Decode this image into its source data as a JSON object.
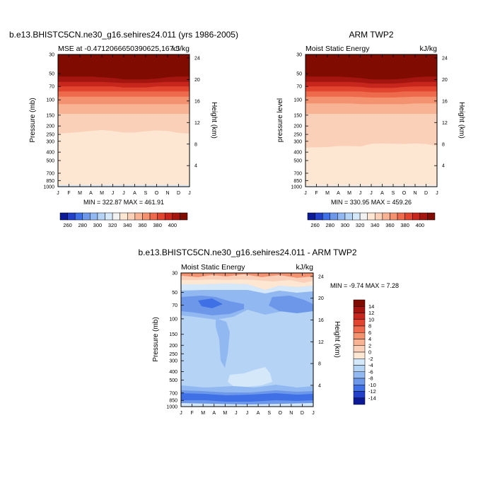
{
  "chart_data": [
    {
      "type": "heatmap",
      "title": "b.e13.BHISTC5CN.ne30_g16.sehires24.011 (yrs 1986-2005)",
      "subtitle_left": "MSE at -0.4712066650390625,167.5",
      "subtitle_right": "kJ/kg",
      "xlabel": "",
      "ylabel": "Pressure (mb)",
      "ylabel_right": "Height (km)",
      "months": [
        "J",
        "F",
        "M",
        "A",
        "M",
        "J",
        "J",
        "A",
        "S",
        "O",
        "N",
        "D",
        "J"
      ],
      "pressure_ticks": [
        "30",
        "50",
        "70",
        "100",
        "150",
        "200",
        "250",
        "300",
        "400",
        "500",
        "700",
        "850",
        "1000"
      ],
      "height_ticks": [
        "24",
        "20",
        "16",
        "12",
        "8",
        "4"
      ],
      "minmax": "MIN = 322.87 MAX = 461.91",
      "colorbar_labels": [
        "260",
        "280",
        "300",
        "320",
        "340",
        "360",
        "380",
        "400"
      ],
      "contour_boundaries_hpa": [
        [
          600,
          600,
          590,
          580,
          570,
          560,
          550,
          540,
          530,
          520,
          530,
          545,
          565
        ],
        [
          960,
          960,
          960,
          960,
          960,
          960,
          960,
          960,
          960,
          960,
          960,
          960,
          960
        ],
        [
          245,
          240,
          235,
          228,
          222,
          228,
          238,
          238,
          230,
          225,
          228,
          240,
          245
        ],
        [
          145,
          145,
          145,
          145,
          145,
          145,
          145,
          145,
          145,
          145,
          145,
          145,
          145
        ],
        [
          112,
          112,
          112,
          112,
          112,
          112,
          112,
          112,
          112,
          112,
          112,
          112,
          112
        ],
        [
          92,
          92,
          92,
          92,
          92,
          92,
          92,
          92,
          92,
          92,
          92,
          92,
          92
        ],
        [
          80,
          80,
          80,
          80,
          80,
          80,
          80,
          80,
          80,
          80,
          80,
          80,
          80
        ],
        [
          70,
          70,
          70,
          70,
          70,
          70,
          72,
          72,
          72,
          70,
          70,
          70,
          70
        ],
        [
          62,
          62,
          62,
          62,
          62,
          63,
          64,
          64,
          64,
          63,
          62,
          62,
          62
        ],
        [
          54,
          54,
          54,
          54,
          55,
          56,
          58,
          58,
          58,
          57,
          55,
          54,
          54
        ]
      ],
      "contour_colors": [
        "#d5e8fa",
        "#f2f2f2",
        "#fde6d2",
        "#fbd0b9",
        "#f7b394",
        "#f4926f",
        "#ee6a4c",
        "#e2452f",
        "#c7261c",
        "#a41510",
        "#800b00"
      ]
    },
    {
      "type": "heatmap",
      "title": "ARM TWP2",
      "subtitle_left": "Moist Static Energy",
      "subtitle_right": "kJ/kg",
      "xlabel": "",
      "ylabel": "pressure level",
      "ylabel_right": "Height (km)",
      "months": [
        "J",
        "F",
        "M",
        "A",
        "M",
        "J",
        "J",
        "A",
        "S",
        "O",
        "N",
        "D",
        "J"
      ],
      "pressure_ticks": [
        "30",
        "50",
        "70",
        "100",
        "150",
        "200",
        "250",
        "300",
        "400",
        "500",
        "700",
        "850",
        "1000"
      ],
      "height_ticks": [
        "24",
        "20",
        "16",
        "12",
        "8",
        "4"
      ],
      "minmax": "MIN = 330.95 MAX = 459.26",
      "colorbar_labels": [
        "260",
        "280",
        "300",
        "320",
        "340",
        "360",
        "380",
        "400"
      ],
      "contour_boundaries_hpa": [
        [
          960,
          960,
          960,
          960,
          960,
          960,
          960,
          960,
          960,
          960,
          960,
          960,
          960
        ],
        [
          355,
          352,
          350,
          340,
          340,
          345,
          320,
          318,
          320,
          322,
          318,
          322,
          340
        ],
        [
          145,
          145,
          145,
          145,
          145,
          145,
          145,
          145,
          145,
          145,
          145,
          145,
          145
        ],
        [
          110,
          110,
          110,
          110,
          110,
          112,
          112,
          112,
          112,
          112,
          110,
          110,
          110
        ],
        [
          92,
          92,
          92,
          92,
          92,
          93,
          94,
          94,
          94,
          93,
          92,
          92,
          92
        ],
        [
          80,
          80,
          80,
          80,
          80,
          80,
          82,
          82,
          82,
          80,
          80,
          80,
          80
        ],
        [
          70,
          70,
          70,
          70,
          70,
          71,
          73,
          73,
          73,
          71,
          70,
          70,
          70
        ],
        [
          62,
          62,
          62,
          62,
          62,
          63,
          65,
          65,
          65,
          64,
          62,
          62,
          62
        ],
        [
          54,
          54,
          54,
          54,
          55,
          56,
          58,
          58,
          58,
          57,
          55,
          54,
          54
        ]
      ],
      "contour_colors": [
        "#f2f2f2",
        "#fde6d2",
        "#fbd0b9",
        "#f7b394",
        "#f4926f",
        "#ee6a4c",
        "#e2452f",
        "#c7261c",
        "#a41510",
        "#800b00"
      ]
    },
    {
      "type": "heatmap",
      "title": "b.e13.BHISTC5CN.ne30_g16.sehires24.011 - ARM TWP2",
      "subtitle_left": "Moist Static Energy",
      "subtitle_right": "kJ/kg",
      "xlabel": "",
      "ylabel": "Pressure (mb)",
      "ylabel_right": "Height (km)",
      "months": [
        "J",
        "F",
        "M",
        "A",
        "M",
        "J",
        "J",
        "A",
        "S",
        "O",
        "N",
        "D",
        "J"
      ],
      "pressure_ticks": [
        "30",
        "50",
        "70",
        "100",
        "150",
        "200",
        "250",
        "300",
        "400",
        "500",
        "700",
        "850",
        "1000"
      ],
      "height_ticks": [
        "24",
        "20",
        "16",
        "12",
        "8",
        "4"
      ],
      "minmax": "MIN =  -9.74 MAX =   7.28",
      "colorbar_labels": [
        "14",
        "12",
        "10",
        "8",
        "6",
        "4",
        "2",
        "0",
        "-2",
        "-4",
        "-6",
        "-8",
        "-10",
        "-12",
        "-14"
      ],
      "colorbar_colors": [
        "#800b00",
        "#a41510",
        "#c7261c",
        "#e2452f",
        "#ee6a4c",
        "#f4926f",
        "#f7b394",
        "#fbd0b9",
        "#fde6d2",
        "#d5e8fa",
        "#b4d3f5",
        "#91b8f0",
        "#6d98ea",
        "#4070e6",
        "#2340c8",
        "#0c1a96"
      ]
    }
  ],
  "colorbar_mse": [
    "#0c1a96",
    "#2340c8",
    "#4070e6",
    "#6d98ea",
    "#91b8f0",
    "#b4d3f5",
    "#d5e8fa",
    "#f2f2f2",
    "#fde6d2",
    "#fbd0b9",
    "#f7b394",
    "#f4926f",
    "#ee6a4c",
    "#e2452f",
    "#c7261c",
    "#a41510",
    "#800b00"
  ]
}
